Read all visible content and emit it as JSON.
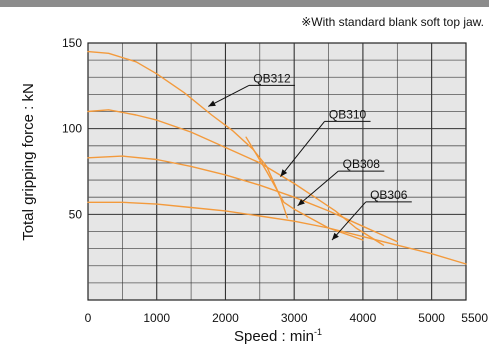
{
  "chart_data": {
    "type": "line",
    "title": "",
    "note": "※With standard blank soft top jaw.",
    "xlabel": "Speed : min",
    "xlabel_superscript": "-1",
    "ylabel": "Total gripping force : kN",
    "xlim": [
      0,
      5500
    ],
    "ylim": [
      0,
      150
    ],
    "x_ticks": [
      0,
      1000,
      2000,
      3000,
      4000,
      5000,
      5500
    ],
    "y_ticks": [
      50,
      100,
      150
    ],
    "grid": true,
    "plot_background": "#e6e6e6",
    "line_color": "#f39a3c",
    "series": [
      {
        "name": "QB312",
        "points": [
          [
            0,
            145
          ],
          [
            300,
            144
          ],
          [
            700,
            139
          ],
          [
            1000,
            132
          ],
          [
            1400,
            121
          ],
          [
            1800,
            108
          ],
          [
            2100,
            99
          ],
          [
            2400,
            88
          ],
          [
            2600,
            78
          ],
          [
            2800,
            60
          ],
          [
            2900,
            48
          ]
        ]
      },
      {
        "name": "QB310",
        "points": [
          [
            0,
            110
          ],
          [
            300,
            111
          ],
          [
            700,
            108
          ],
          [
            1000,
            105
          ],
          [
            1500,
            98
          ],
          [
            2000,
            89
          ],
          [
            2500,
            80
          ],
          [
            3000,
            68
          ],
          [
            3300,
            60
          ],
          [
            3600,
            52
          ],
          [
            3900,
            42
          ],
          [
            4300,
            32
          ]
        ]
      },
      {
        "name": "QB308",
        "points": [
          [
            0,
            83
          ],
          [
            500,
            84
          ],
          [
            1000,
            82
          ],
          [
            1500,
            78
          ],
          [
            2000,
            73
          ],
          [
            2500,
            67
          ],
          [
            3000,
            60
          ],
          [
            3500,
            52
          ],
          [
            4000,
            43
          ],
          [
            4500,
            34
          ]
        ]
      },
      {
        "name": "QB306",
        "points": [
          [
            0,
            57
          ],
          [
            500,
            57
          ],
          [
            1000,
            56
          ],
          [
            1500,
            54
          ],
          [
            2000,
            52
          ],
          [
            2500,
            49
          ],
          [
            3000,
            46
          ],
          [
            3500,
            42
          ],
          [
            4000,
            37
          ],
          [
            4500,
            32
          ],
          [
            5000,
            27
          ],
          [
            5500,
            21
          ]
        ]
      },
      {
        "name": "",
        "points": [
          [
            2300,
            95
          ],
          [
            2600,
            75
          ],
          [
            2850,
            57
          ],
          [
            3000,
            53
          ],
          [
            3500,
            42
          ],
          [
            4000,
            35
          ]
        ]
      }
    ],
    "labels": [
      {
        "series": "QB312",
        "label_at": [
          2400,
          127
        ],
        "arrow_to": [
          1750,
          113
        ]
      },
      {
        "series": "QB310",
        "label_at": [
          3500,
          106
        ],
        "arrow_to": [
          2800,
          72
        ]
      },
      {
        "series": "QB308",
        "label_at": [
          3700,
          77
        ],
        "arrow_to": [
          3050,
          55
        ]
      },
      {
        "series": "QB306",
        "label_at": [
          4100,
          59
        ],
        "arrow_to": [
          3550,
          35
        ]
      }
    ]
  }
}
